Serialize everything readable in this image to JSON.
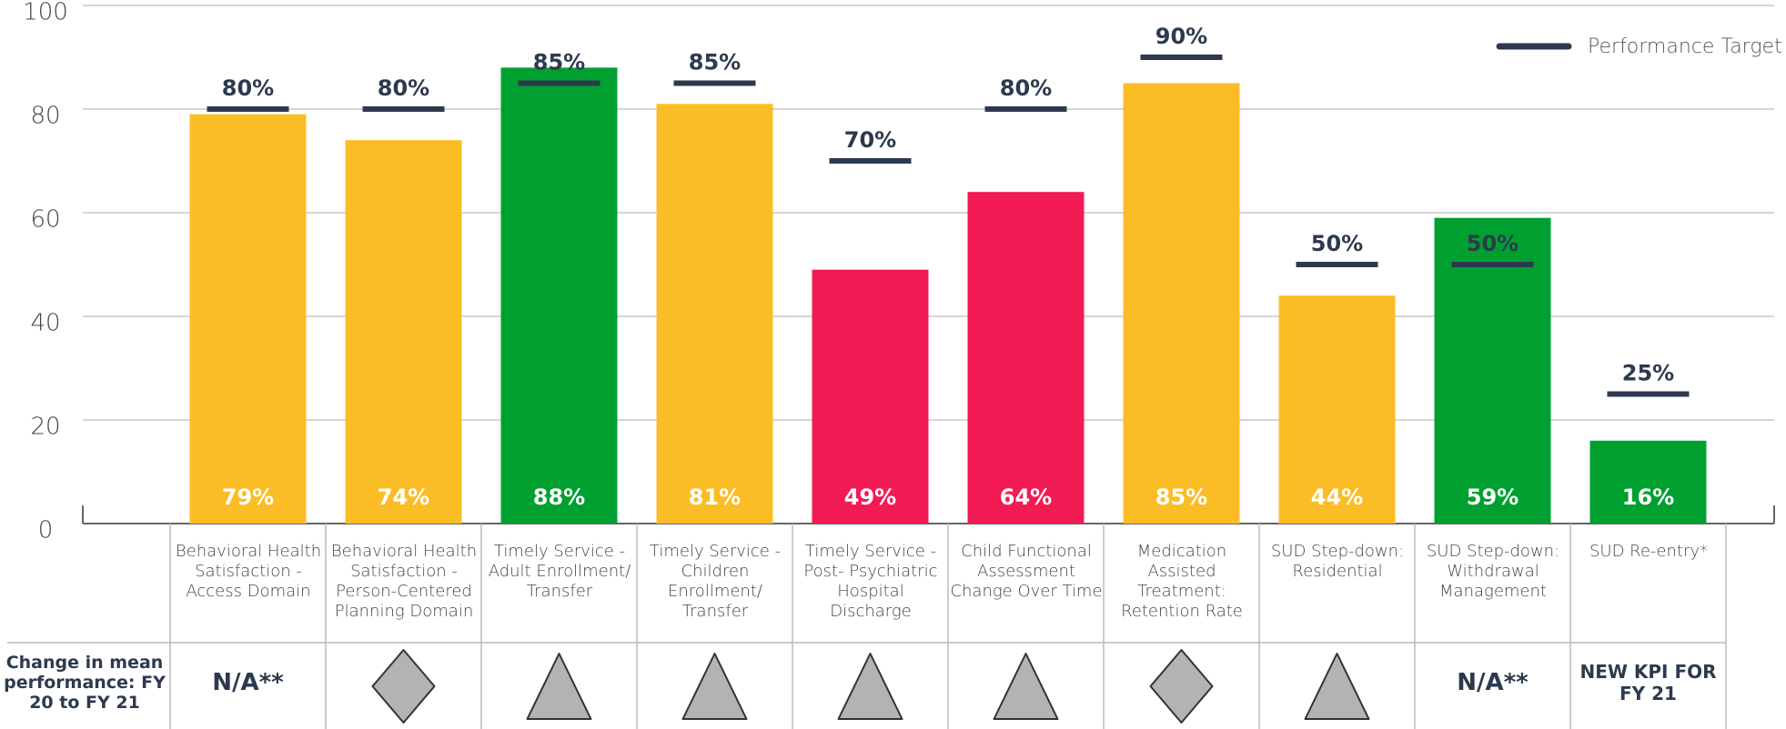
{
  "chart_data": {
    "type": "bar",
    "categories": [
      "Behavioral Health Satisfaction - Access Domain",
      "Behavioral Health Satisfaction - Person-Centered Planning Domain",
      "Timely Service - Adult Enrollment/ Transfer",
      "Timely Service - Children Enrollment/ Transfer",
      "Timely Service - Post- Psychiatric Hospital Discharge",
      "Child Functional Assessment Change Over Time",
      "Medication Assisted Treatment: Retention Rate",
      "SUD Step-down: Residential",
      "SUD Step-down: Withdrawal Management",
      "SUD Re-entry*"
    ],
    "values": [
      79,
      74,
      88,
      81,
      49,
      64,
      85,
      44,
      59,
      16
    ],
    "value_labels": [
      "79%",
      "74%",
      "88%",
      "81%",
      "49%",
      "64%",
      "85%",
      "44%",
      "59%",
      "16%"
    ],
    "colors": [
      "#fbbd25",
      "#fbbd25",
      "#00a030",
      "#fbbd25",
      "#f21b53",
      "#f21b53",
      "#fbbd25",
      "#fbbd25",
      "#00a030",
      "#00a030"
    ],
    "targets": [
      80,
      80,
      85,
      85,
      70,
      80,
      90,
      50,
      50,
      25
    ],
    "target_labels": [
      "80%",
      "80%",
      "85%",
      "85%",
      "70%",
      "80%",
      "90%",
      "50%",
      "50%",
      "25%"
    ],
    "target_color": "#2d3a4e",
    "legend": "Performance Target",
    "ylim": [
      0,
      100
    ],
    "yticks": [
      0,
      20,
      40,
      60,
      80,
      100
    ],
    "grid": true,
    "change_row_label": "Change in mean performance: FY 20 to FY 21",
    "change_labels": [
      "N/A**",
      null,
      null,
      null,
      null,
      null,
      null,
      null,
      "N/A**",
      "NEW KPI FOR FY 21"
    ],
    "change_icons": [
      null,
      "diamond",
      "triangle",
      "triangle",
      "triangle",
      "triangle",
      "diamond",
      "triangle",
      null,
      null
    ]
  }
}
